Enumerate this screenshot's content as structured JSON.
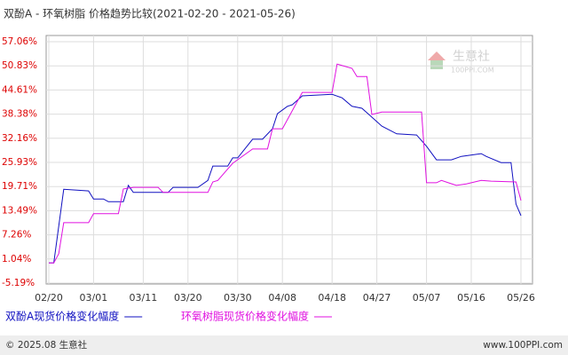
{
  "chart_data": {
    "type": "line",
    "title": "双酚A - 环氧树脂 价格趋势比较(2021-02-20 - 2021-05-26)",
    "watermark": "生意社",
    "watermark_sub": "100PPI.COM",
    "footer_left": "© 2025.08 生意社",
    "footer_right": "www.100PPI.com",
    "grid": true,
    "ylim": [
      -5.19,
      57.06
    ],
    "yticks": [
      {
        "value": 57.06,
        "label": "57.06%"
      },
      {
        "value": 50.83,
        "label": "50.83%"
      },
      {
        "value": 44.61,
        "label": "44.61%"
      },
      {
        "value": 38.38,
        "label": "38.38%"
      },
      {
        "value": 32.16,
        "label": "32.16%"
      },
      {
        "value": 25.93,
        "label": "25.93%"
      },
      {
        "value": 19.71,
        "label": "19.71%"
      },
      {
        "value": 13.49,
        "label": "13.49%"
      },
      {
        "value": 7.26,
        "label": "7.26%"
      },
      {
        "value": 1.04,
        "label": "1.04%"
      },
      {
        "value": -5.19,
        "label": "-5.19%"
      }
    ],
    "xlim": [
      "02/20",
      "05/26"
    ],
    "xticks": [
      "02/20",
      "03/01",
      "03/11",
      "03/20",
      "03/30",
      "04/08",
      "04/18",
      "04/27",
      "05/07",
      "05/16",
      "05/26"
    ],
    "series": [
      {
        "name": "双酚A现货价格变化幅度",
        "color": "#1010c0",
        "x": [
          "02/20",
          "02/21",
          "02/23",
          "02/28",
          "03/01",
          "03/03",
          "03/04",
          "03/07",
          "03/08",
          "03/09",
          "03/16",
          "03/17",
          "03/22",
          "03/24",
          "03/25",
          "03/28",
          "03/29",
          "03/30",
          "04/02",
          "04/04",
          "04/06",
          "04/07",
          "04/09",
          "04/10",
          "04/12",
          "04/18",
          "04/20",
          "04/22",
          "04/24",
          "04/26",
          "04/28",
          "05/01",
          "05/05",
          "05/07",
          "05/09",
          "05/12",
          "05/14",
          "05/18",
          "05/19",
          "05/22",
          "05/24",
          "05/25",
          "05/26"
        ],
        "values": [
          0,
          0,
          19.0,
          18.6,
          16.5,
          16.5,
          15.8,
          15.8,
          20.0,
          18.2,
          18.2,
          19.5,
          19.5,
          21.3,
          25.0,
          25.0,
          27.1,
          27.1,
          31.9,
          31.9,
          34.6,
          38.5,
          40.4,
          40.8,
          43.1,
          43.5,
          42.6,
          40.4,
          39.9,
          37.6,
          35.3,
          33.3,
          33.0,
          30.1,
          26.6,
          26.6,
          27.5,
          28.2,
          27.5,
          25.9,
          25.9,
          15.2,
          12.2
        ]
      },
      {
        "name": "环氧树脂现货价格变化幅度",
        "color": "#e010e0",
        "x": [
          "02/20",
          "02/21",
          "02/22",
          "02/23",
          "02/28",
          "03/01",
          "03/06",
          "03/07",
          "03/09",
          "03/14",
          "03/15",
          "03/24",
          "03/25",
          "03/26",
          "03/29",
          "04/02",
          "04/05",
          "04/06",
          "04/08",
          "04/12",
          "04/18",
          "04/19",
          "04/22",
          "04/23",
          "04/25",
          "04/26",
          "04/28",
          "05/06",
          "05/07",
          "05/09",
          "05/10",
          "05/13",
          "05/15",
          "05/18",
          "05/20",
          "05/25",
          "05/26"
        ],
        "values": [
          0,
          0,
          2.4,
          10.4,
          10.4,
          12.7,
          12.7,
          19.1,
          19.5,
          19.5,
          18.2,
          18.2,
          20.9,
          21.3,
          25.7,
          29.4,
          29.4,
          34.6,
          34.6,
          44.0,
          44.0,
          51.3,
          50.2,
          48.1,
          48.1,
          38.3,
          38.9,
          38.9,
          20.7,
          20.7,
          21.3,
          20.0,
          20.4,
          21.3,
          21.1,
          20.9,
          16.1
        ]
      }
    ]
  }
}
